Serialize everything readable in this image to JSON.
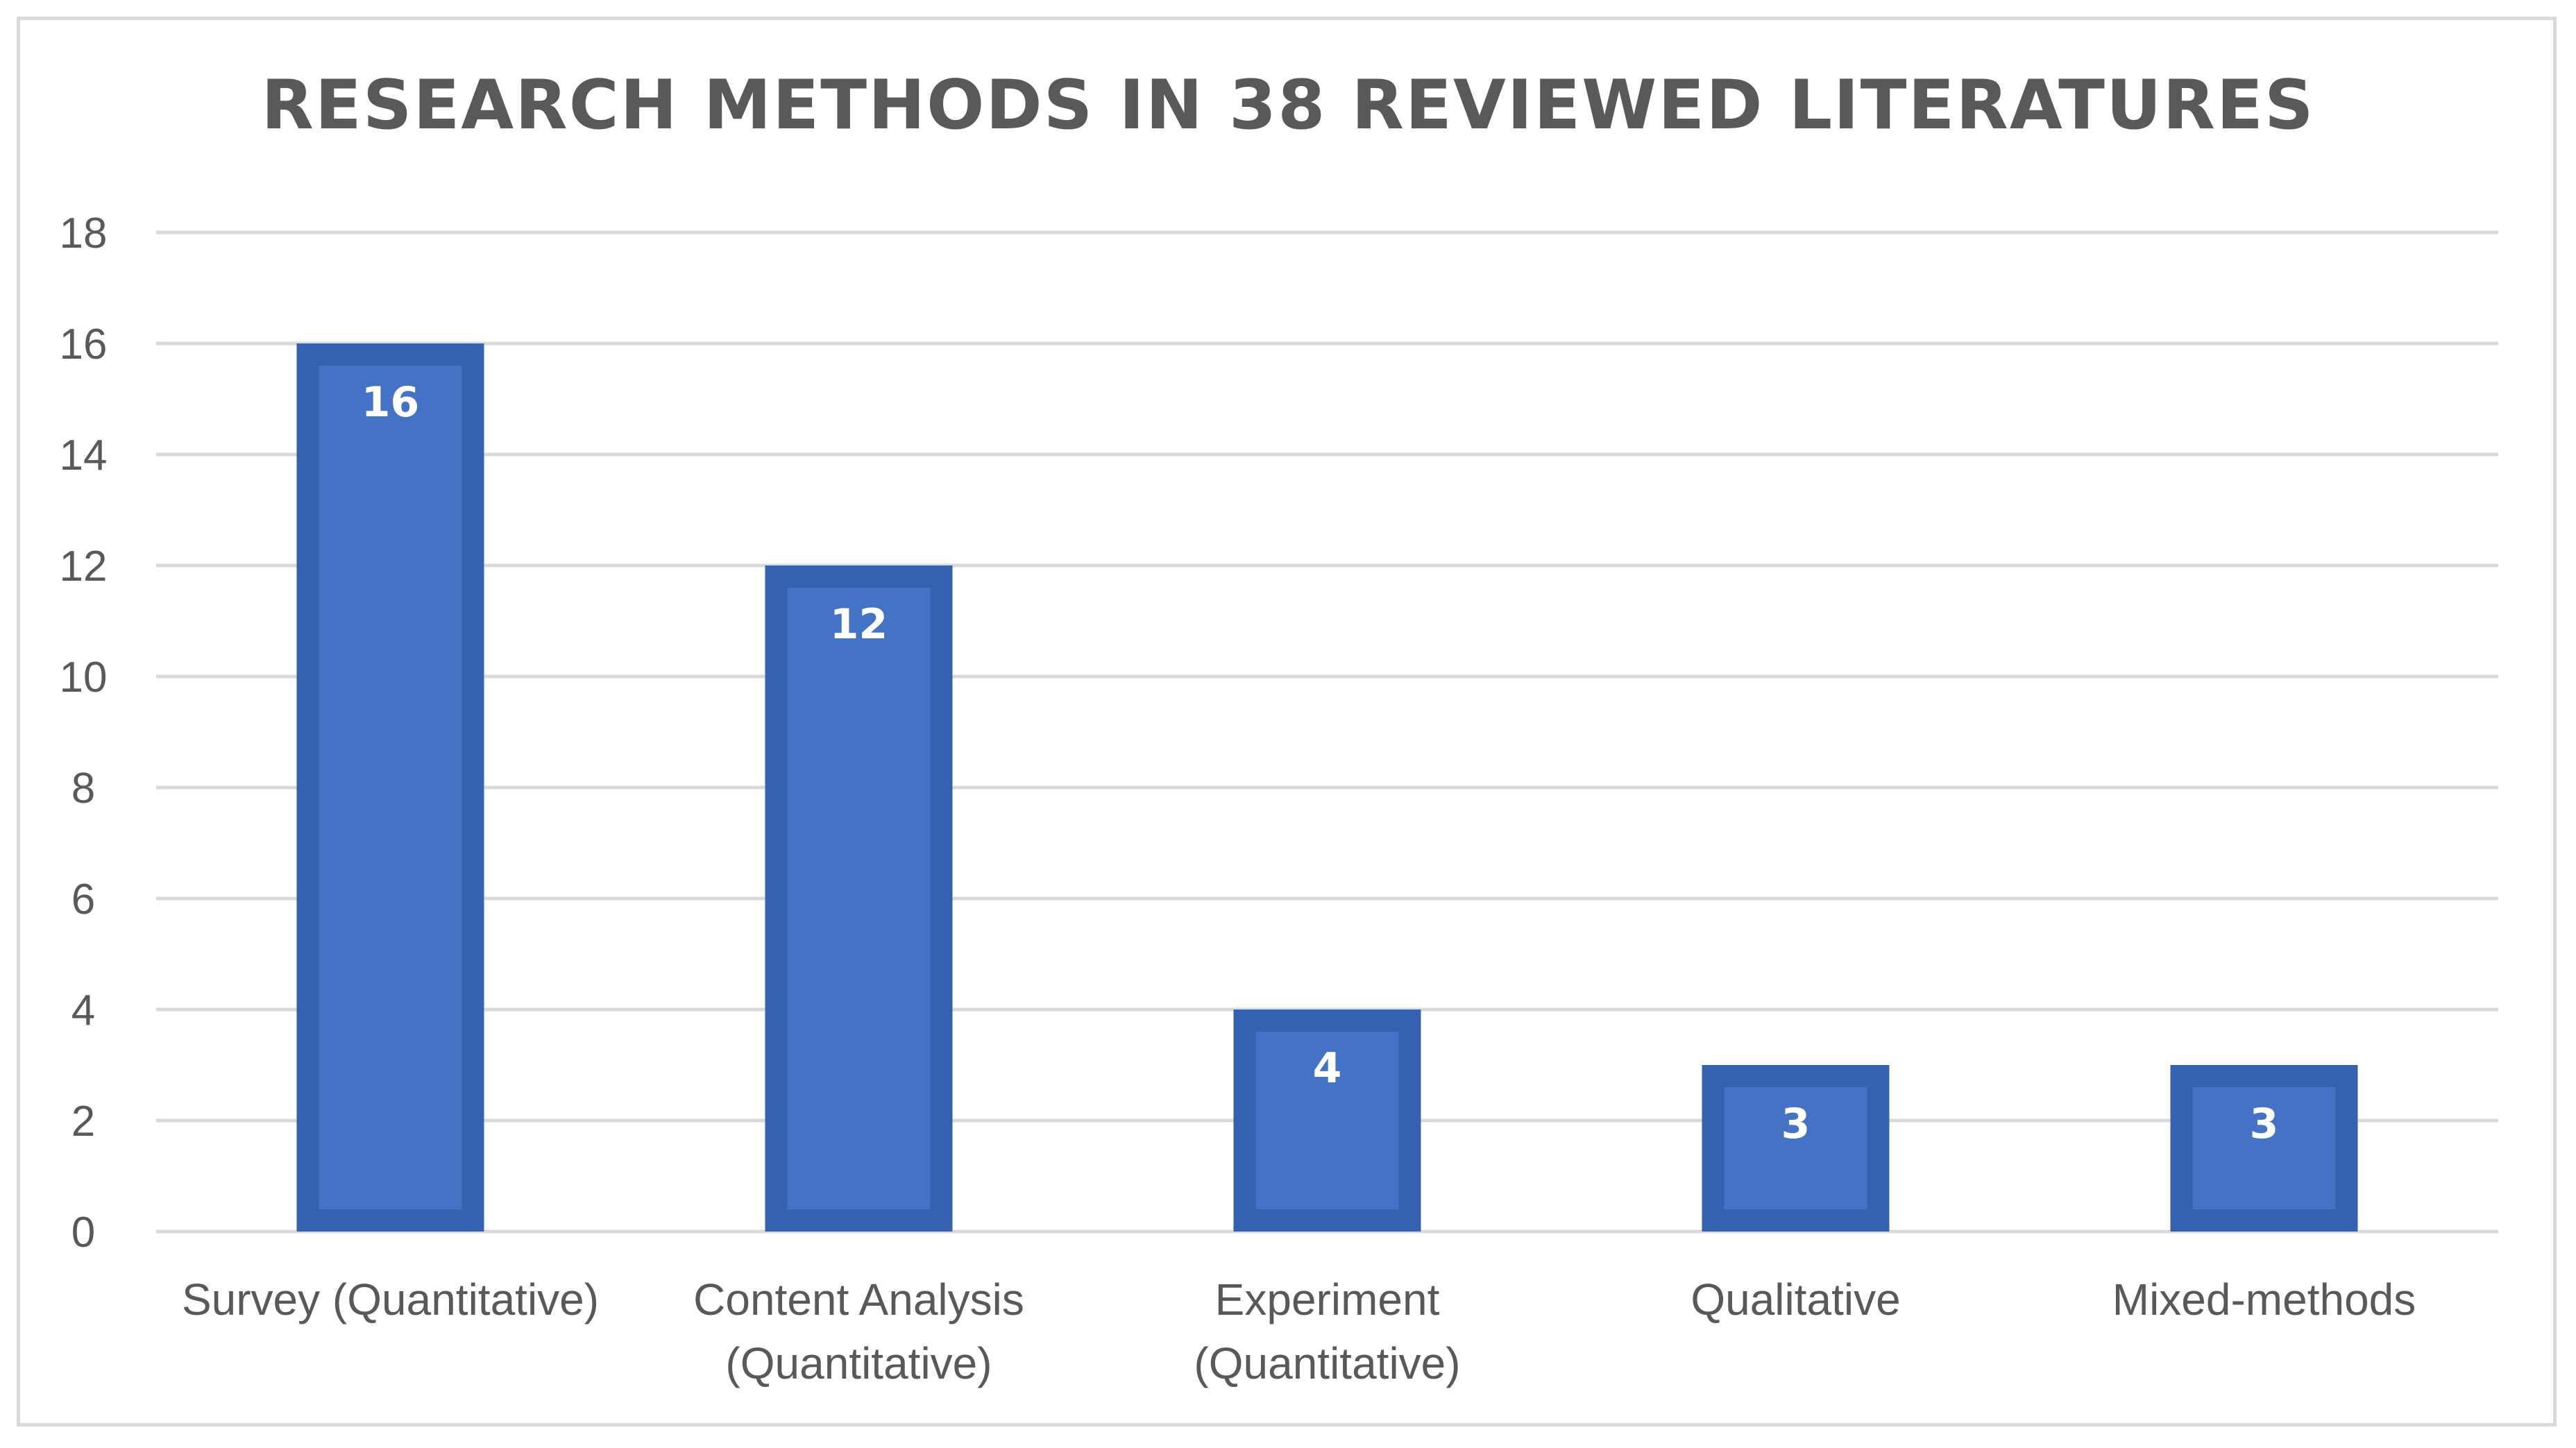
{
  "chart_data": {
    "type": "bar",
    "title": "RESEARCH METHODS IN 38 REVIEWED LITERATURES",
    "xlabel": "",
    "ylabel": "",
    "categories": [
      [
        "Survey (Quantitative)"
      ],
      [
        "Content Analysis",
        "(Quantitative)"
      ],
      [
        "Experiment",
        "(Quantitative)"
      ],
      [
        "Qualitative"
      ],
      [
        "Mixed-methods"
      ]
    ],
    "values": [
      16,
      12,
      4,
      3,
      3
    ],
    "data_labels": [
      "16",
      "12",
      "4",
      "3",
      "3"
    ],
    "ylim": [
      0,
      18
    ],
    "yticks": [
      0,
      2,
      4,
      6,
      8,
      10,
      12,
      14,
      16,
      18
    ],
    "grid": true,
    "legend": "none",
    "colors": {
      "bar_fill": "#4472C4",
      "bar_border": "#3562B0",
      "gridline": "#d9d9d9",
      "axis_text": "#595959",
      "title_text": "#595959",
      "data_label_text": "#ffffff"
    }
  }
}
